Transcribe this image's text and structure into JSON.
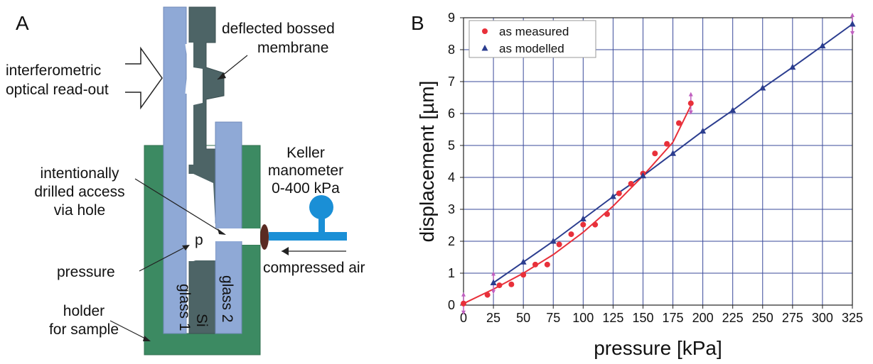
{
  "panel_a": {
    "letter": "A",
    "labels": {
      "membrane_line1": "deflected bossed",
      "membrane_line2": "membrane",
      "readout_line1": "interferometric",
      "readout_line2": "optical read-out",
      "manometer_line1": "Keller",
      "manometer_line2": "manometer",
      "manometer_line3": "0-400 kPa",
      "hole_line1": "intentionally",
      "hole_line2": "drilled access",
      "hole_line3": "via hole",
      "p": "p",
      "pressure": "pressure",
      "compressed_air": "compressed air",
      "holder_line1": "holder",
      "holder_line2": "for sample",
      "glass1": "glass 1",
      "si": "Si",
      "glass2": "glass 2"
    },
    "colors": {
      "glass": "#8fa9d6",
      "silicon": "#4d6466",
      "holder": "#3c8a62",
      "tube": "#1a8fd6",
      "seal": "#5a2a22"
    }
  },
  "chart_data": {
    "type": "line",
    "panel_letter": "B",
    "xlabel": "pressure [kPa]",
    "ylabel": "displacement [µm]",
    "xlim": [
      0,
      325
    ],
    "ylim": [
      0,
      9
    ],
    "xticks": [
      0,
      25,
      50,
      75,
      100,
      125,
      150,
      175,
      200,
      225,
      250,
      275,
      300,
      325
    ],
    "yticks": [
      0,
      1,
      2,
      3,
      4,
      5,
      6,
      7,
      8,
      9
    ],
    "grid": true,
    "legend_position": "top-left",
    "series": [
      {
        "name": "as measured",
        "marker": "circle",
        "color": "#e8303a",
        "points": [
          [
            0,
            0.05
          ],
          [
            20,
            0.32
          ],
          [
            30,
            0.62
          ],
          [
            40,
            0.65
          ],
          [
            50,
            0.95
          ],
          [
            60,
            1.27
          ],
          [
            70,
            1.27
          ],
          [
            80,
            1.9
          ],
          [
            90,
            2.22
          ],
          [
            100,
            2.52
          ],
          [
            110,
            2.52
          ],
          [
            120,
            2.85
          ],
          [
            130,
            3.5
          ],
          [
            140,
            3.8
          ],
          [
            150,
            4.12
          ],
          [
            160,
            4.75
          ],
          [
            170,
            5.05
          ],
          [
            180,
            5.7
          ],
          [
            190,
            6.32
          ]
        ],
        "fit_curve": [
          [
            0,
            0.05
          ],
          [
            25,
            0.5
          ],
          [
            50,
            1.0
          ],
          [
            75,
            1.58
          ],
          [
            100,
            2.28
          ],
          [
            125,
            3.1
          ],
          [
            150,
            4.05
          ],
          [
            175,
            5.1
          ],
          [
            190,
            6.25
          ]
        ]
      },
      {
        "name": "as modelled",
        "marker": "triangle",
        "color": "#2b3d8f",
        "points": [
          [
            25,
            0.7
          ],
          [
            50,
            1.35
          ],
          [
            75,
            2.0
          ],
          [
            100,
            2.7
          ],
          [
            125,
            3.4
          ],
          [
            150,
            4.05
          ],
          [
            175,
            4.75
          ],
          [
            200,
            5.45
          ],
          [
            225,
            6.1
          ],
          [
            250,
            6.8
          ],
          [
            275,
            7.45
          ],
          [
            300,
            8.12
          ],
          [
            325,
            8.8
          ]
        ]
      }
    ],
    "error_bar_color": "#c060c0",
    "error_bars": [
      {
        "x": 0,
        "y": 0.05
      },
      {
        "x": 25,
        "y": 0.7
      },
      {
        "x": 190,
        "y": 6.32
      },
      {
        "x": 325,
        "y": 8.8
      }
    ]
  }
}
